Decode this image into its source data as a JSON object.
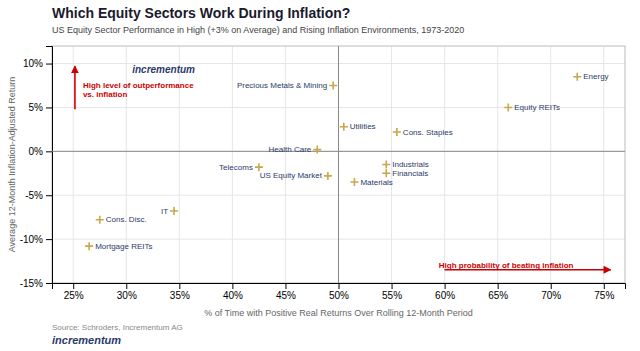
{
  "chart_data": {
    "type": "scatter",
    "title": "Which Equity Sectors Work During Inflation?",
    "subtitle": "US Equity Sector Performance in High (+3% on Average) and Rising Inflation Environments, 1973-2020",
    "xlabel": "% of Time with Positive Real Returns Over Rolling 12-Month Period",
    "ylabel": "Average 12-Month Inflation-Adjusted Return",
    "source": "Source: Schroders, Incrementum AG",
    "labels": [
      "Precious Metals & Mining",
      "Energy",
      "Equity REITs",
      "Utilities",
      "Cons. Staples",
      "Health Care",
      "Telecoms",
      "US Equity Market",
      "Industrials",
      "Financials",
      "Materials",
      "IT",
      "Cons. Disc.",
      "Mortgage REITs"
    ],
    "x": [
      49.5,
      72.5,
      66.0,
      50.5,
      55.5,
      48.0,
      42.5,
      49.0,
      54.5,
      54.5,
      51.5,
      34.5,
      27.5,
      26.5
    ],
    "values": [
      7.5,
      8.5,
      5.0,
      2.8,
      2.2,
      0.2,
      -1.8,
      -2.8,
      -1.5,
      -2.5,
      -3.5,
      -6.8,
      -7.8,
      -10.8
    ],
    "color": "#C8A84B",
    "marker": "plus",
    "xlim": [
      23,
      77
    ],
    "ylim": [
      -15,
      12
    ],
    "xticks": [
      {
        "value": 25,
        "label": "25%"
      },
      {
        "value": 30,
        "label": "30%"
      },
      {
        "value": 35,
        "label": "35%"
      },
      {
        "value": 40,
        "label": "40%"
      },
      {
        "value": 45,
        "label": "45%"
      },
      {
        "value": 50,
        "label": "50%"
      },
      {
        "value": 55,
        "label": "55%"
      },
      {
        "value": 60,
        "label": "60%"
      },
      {
        "value": 65,
        "label": "65%"
      },
      {
        "value": 70,
        "label": "70%"
      },
      {
        "value": 75,
        "label": "75%"
      }
    ],
    "yticks": [
      {
        "value": -15,
        "label": "-15%"
      },
      {
        "value": -10,
        "label": "-10%"
      },
      {
        "value": -5,
        "label": "-5%"
      },
      {
        "value": 0,
        "label": "0%"
      },
      {
        "value": 5,
        "label": "5%"
      },
      {
        "value": 10,
        "label": "10%"
      }
    ],
    "grid": true,
    "hline": 0,
    "vline": 50,
    "annotations": [
      {
        "text": "High level of outperformance\nvs. inflation",
        "color": "#CC0000"
      },
      {
        "text": "High probability of beating inflation",
        "color": "#CC0000"
      },
      {
        "text": "incrementum",
        "color": "#2B3A6B"
      },
      {
        "text": "incrementum",
        "color": "#2B3A6B"
      }
    ]
  }
}
